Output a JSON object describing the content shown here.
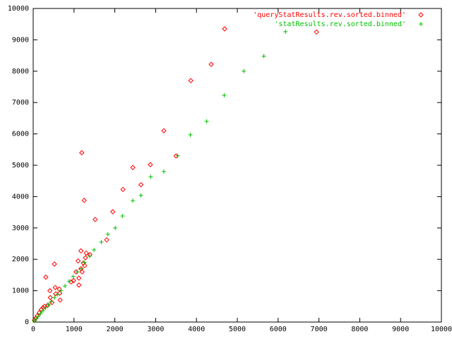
{
  "chart_data": {
    "type": "scatter",
    "xlim": [
      0,
      10000
    ],
    "ylim": [
      0,
      10000
    ],
    "xticks": [
      0,
      1000,
      2000,
      3000,
      4000,
      5000,
      6000,
      7000,
      8000,
      9000,
      10000
    ],
    "yticks": [
      0,
      1000,
      2000,
      3000,
      4000,
      5000,
      6000,
      7000,
      8000,
      9000,
      10000
    ],
    "grid": false,
    "legend": "top-right",
    "series": [
      {
        "name": "'queryStatResults.rev.sorted.binned'",
        "color": "#ff0000",
        "marker": "diamond",
        "x": [
          4690,
          4360,
          3860,
          3200,
          1190,
          2870,
          2440,
          2640,
          2200,
          1950,
          1250,
          1520,
          1800,
          1300,
          1170,
          1390,
          1280,
          1100,
          1260,
          1200,
          1050,
          1120,
          990,
          930,
          1120,
          520,
          310,
          410,
          540,
          640,
          650,
          550,
          660,
          460,
          280,
          200,
          150,
          100,
          60,
          30,
          360,
          420,
          240,
          1170,
          1230,
          6940,
          3500
        ],
        "values": [
          9350,
          8220,
          7700,
          6100,
          5400,
          5020,
          4930,
          4380,
          4230,
          3520,
          3880,
          3270,
          2620,
          2200,
          2270,
          2150,
          2050,
          1950,
          1800,
          1600,
          1600,
          1400,
          1320,
          1280,
          1180,
          1850,
          1430,
          1000,
          1100,
          1050,
          920,
          900,
          700,
          620,
          500,
          400,
          300,
          200,
          120,
          60,
          540,
          780,
          460,
          1700,
          1880,
          9250,
          5300
        ]
      },
      {
        "name": "'statResults.rev.sorted.binned'",
        "color": "#00c000",
        "marker": "plus",
        "x": [
          6180,
          5650,
          5160,
          4680,
          4250,
          3850,
          3200,
          3540,
          2880,
          2640,
          2440,
          2190,
          2010,
          1830,
          1670,
          1490,
          1380,
          1250,
          1180,
          1080,
          980,
          880,
          780,
          680,
          600,
          520,
          440,
          370,
          300,
          240,
          180,
          120,
          70,
          30
        ],
        "values": [
          9260,
          8480,
          8000,
          7230,
          6400,
          5970,
          4800,
          5300,
          4630,
          4040,
          3870,
          3380,
          3000,
          2800,
          2550,
          2300,
          2100,
          1900,
          1700,
          1600,
          1450,
          1300,
          1150,
          1000,
          880,
          780,
          650,
          550,
          450,
          360,
          270,
          180,
          100,
          40
        ]
      }
    ]
  }
}
